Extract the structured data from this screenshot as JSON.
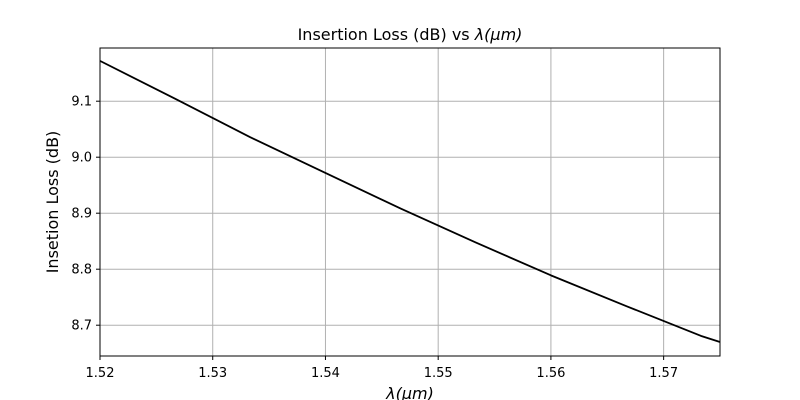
{
  "chart_data": {
    "type": "line",
    "title_prefix": "Insertion Loss (dB) vs ",
    "title_symbol": "λ(μm)",
    "xlabel": "λ(μm)",
    "ylabel": "Insetion Loss (dB)",
    "xlim": [
      1.52,
      1.575
    ],
    "ylim": [
      8.645,
      9.195
    ],
    "xticks": [
      1.52,
      1.53,
      1.54,
      1.55,
      1.56,
      1.57
    ],
    "xtick_labels": [
      "1.52",
      "1.53",
      "1.54",
      "1.55",
      "1.56",
      "1.57"
    ],
    "yticks": [
      8.7,
      8.8,
      8.9,
      9.0,
      9.1
    ],
    "ytick_labels": [
      "8.7",
      "8.8",
      "8.9",
      "9.0",
      "9.1"
    ],
    "grid": true,
    "series": [
      {
        "color": "#000000",
        "x": [
          1.52,
          1.5267,
          1.5333,
          1.54,
          1.5467,
          1.5533,
          1.56,
          1.5667,
          1.5733,
          1.575
        ],
        "y": [
          9.172,
          9.104,
          9.036,
          8.972,
          8.908,
          8.848,
          8.789,
          8.734,
          8.681,
          8.67
        ]
      }
    ]
  }
}
